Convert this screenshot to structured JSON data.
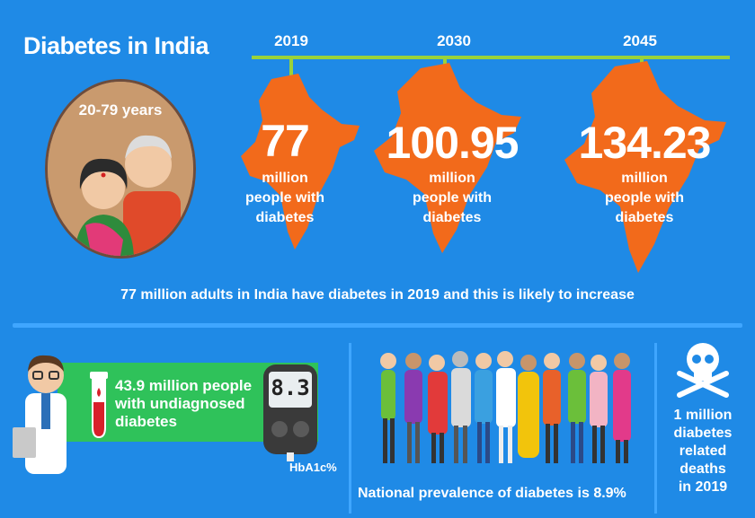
{
  "header": {
    "title": "Diabetes in India"
  },
  "timeline": [
    {
      "year": "2019",
      "value": "77",
      "unit": "million",
      "desc1": "people with",
      "desc2": "diabetes"
    },
    {
      "year": "2030",
      "value": "100.95",
      "unit": "million",
      "desc1": "people with",
      "desc2": "diabetes"
    },
    {
      "year": "2045",
      "value": "134.23",
      "unit": "million",
      "desc1": "people with",
      "desc2": "diabetes"
    }
  ],
  "portrait": {
    "label": "20-79 years"
  },
  "summary": "77 million adults in India have diabetes in 2019 and this is likely to increase",
  "undiagnosed": {
    "line1": "43.9 million people",
    "line2": "with undiagnosed",
    "line3": "diabetes"
  },
  "meter": {
    "reading": "8.3",
    "label": "HbA1c%"
  },
  "prevalence": "National prevalence of diabetes is 8.9%",
  "deaths": {
    "line1": "1 million",
    "line2": "diabetes",
    "line3": "related",
    "line4": "deaths",
    "line5": "in 2019"
  },
  "colors": {
    "background": "#1f8ae6",
    "accent": "#9ad23a",
    "map": "#f26a1b",
    "highlight": "#2fc25a"
  }
}
